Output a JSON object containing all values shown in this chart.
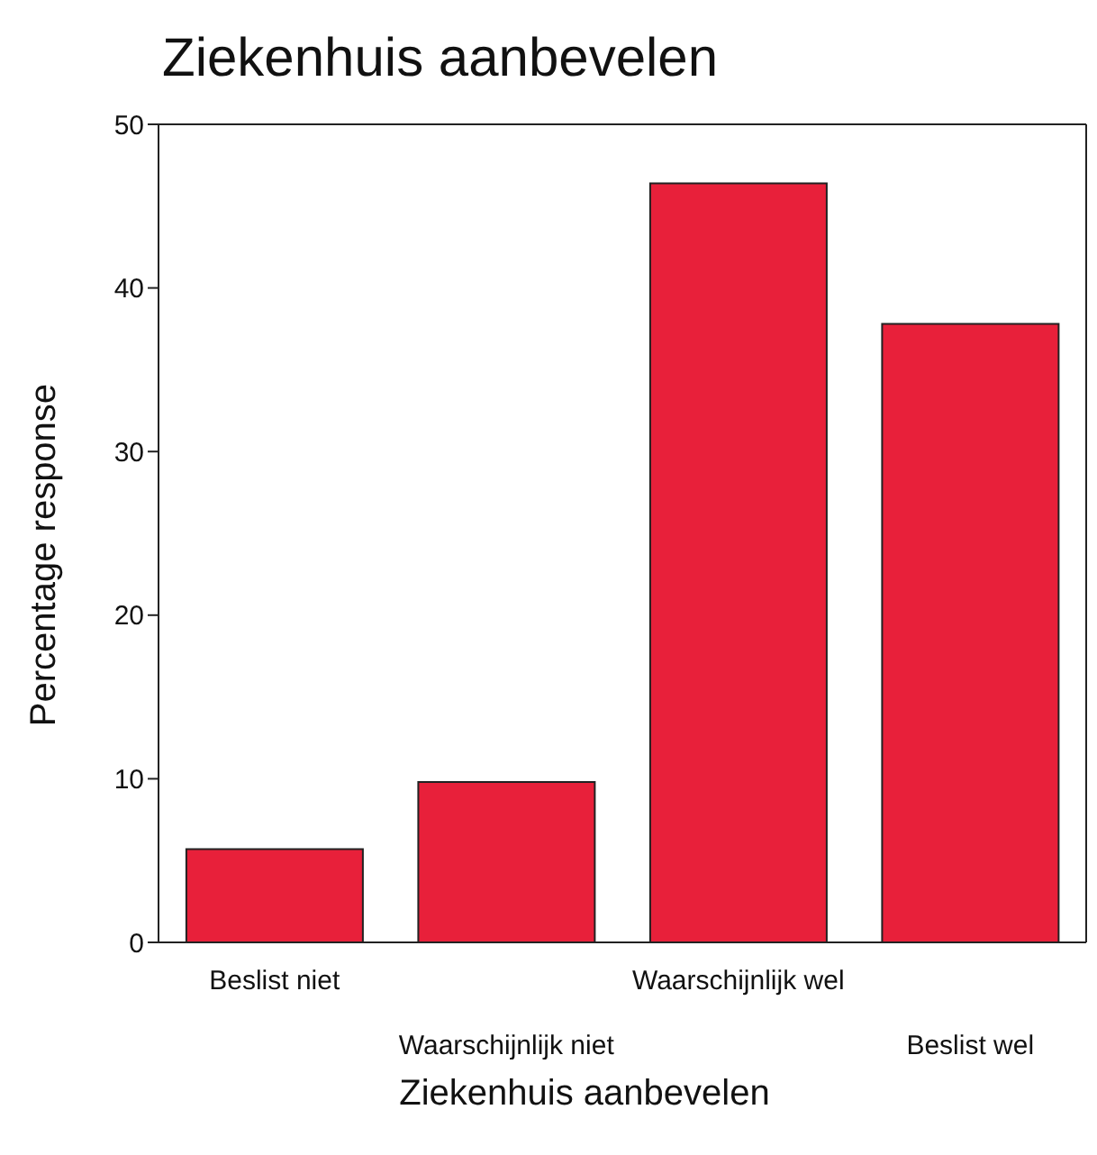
{
  "chart_data": {
    "type": "bar",
    "title": "Ziekenhuis aanbevelen",
    "xlabel": "Ziekenhuis aanbevelen",
    "ylabel": "Percentage response",
    "categories": [
      "Beslist niet",
      "Waarschijnlijk niet",
      "Waarschijnlijk wel",
      "Beslist wel"
    ],
    "values": [
      5.7,
      9.8,
      46.4,
      37.8
    ],
    "color": "#e8203a",
    "ylim": [
      0,
      50
    ],
    "yticks": [
      0,
      10,
      20,
      30,
      40,
      50
    ]
  }
}
